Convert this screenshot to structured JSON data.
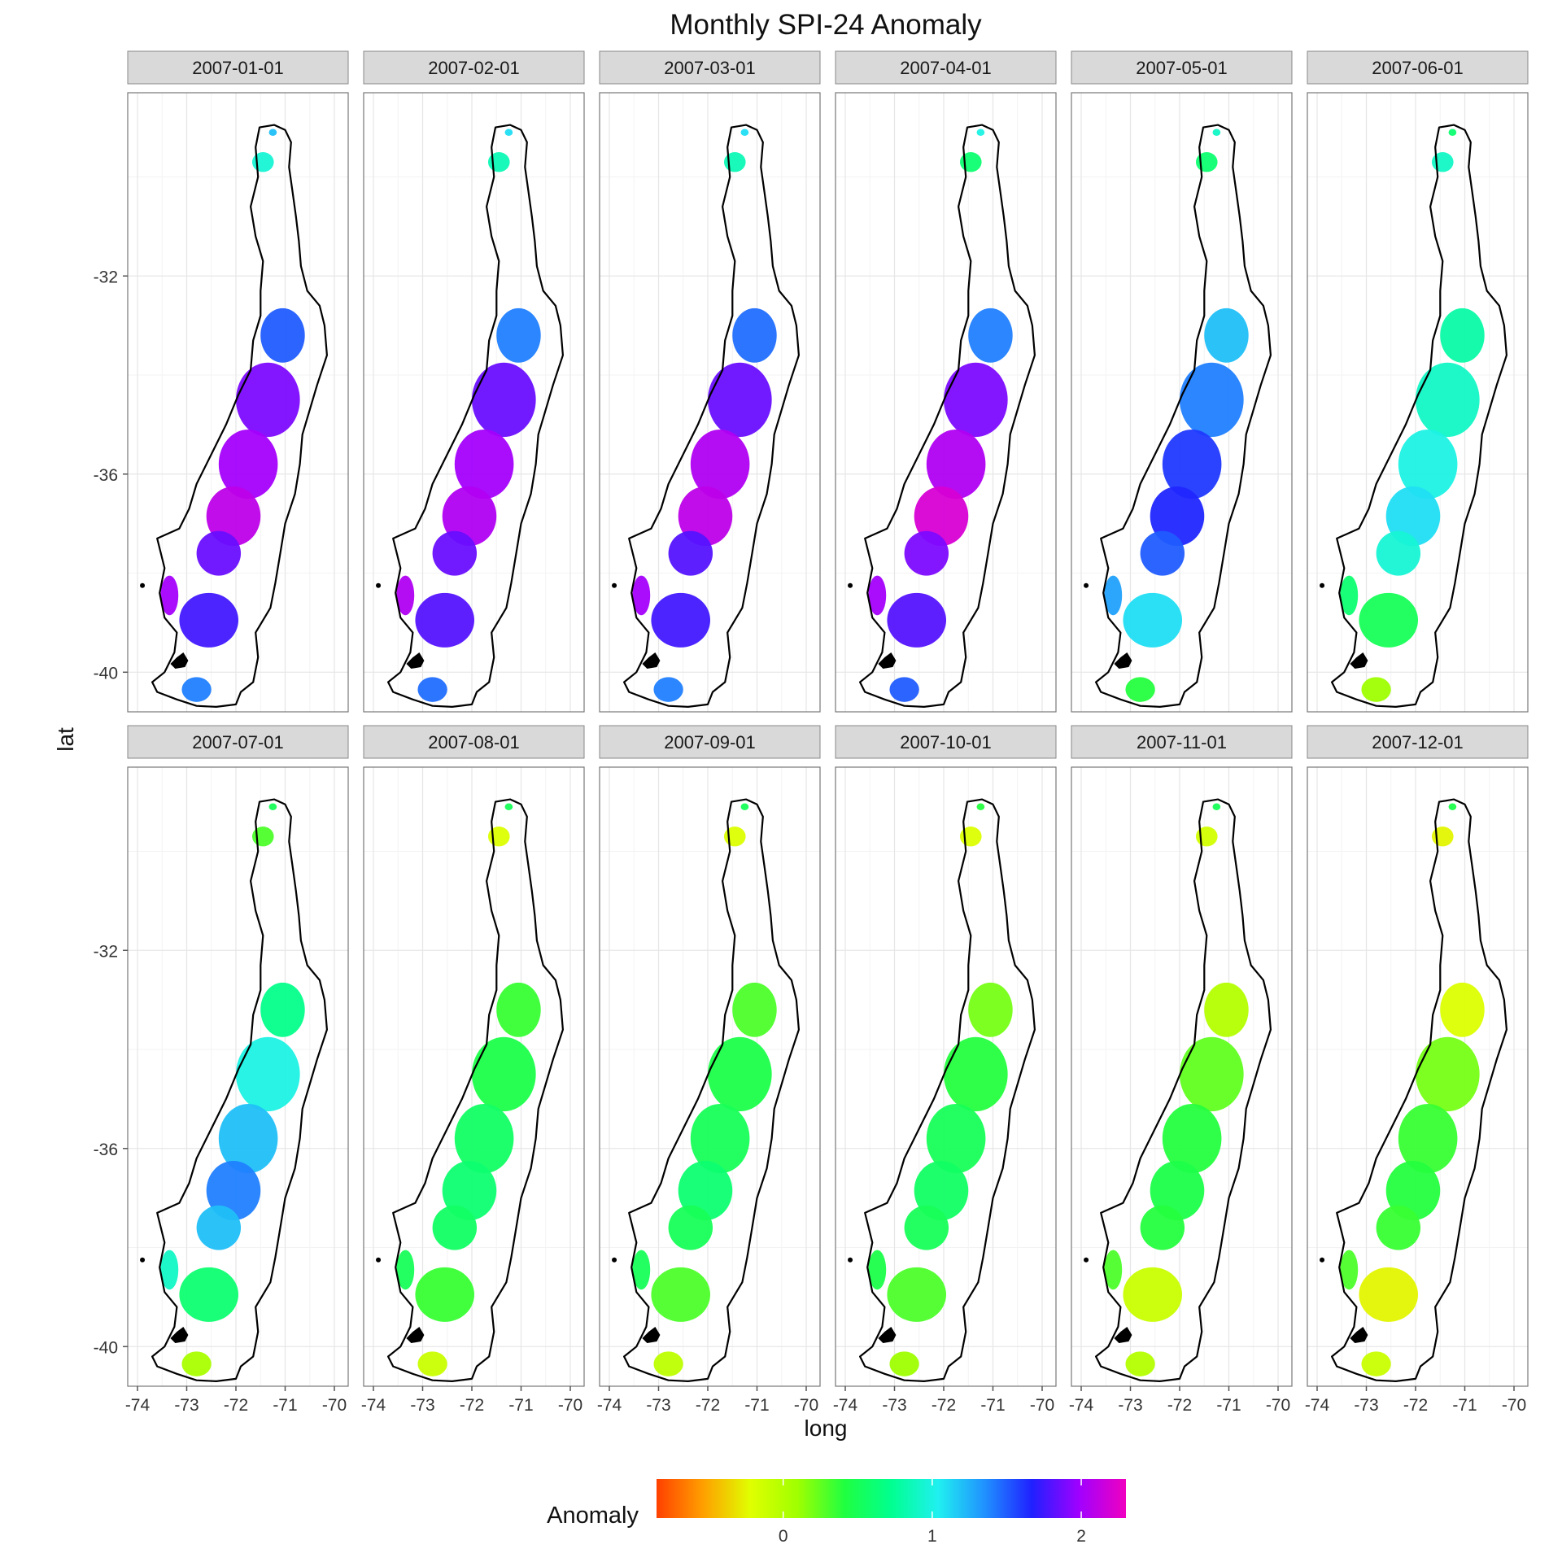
{
  "chart_data": {
    "type": "heatmap",
    "subtype": "faceted choropleth map",
    "title": "Monthly SPI-24 Anomaly",
    "xlabel": "long",
    "ylabel": "lat",
    "xlim": [
      -74.2,
      -69.8
    ],
    "ylim": [
      -40.8,
      -28.3
    ],
    "x_ticks": [
      -74,
      -73,
      -72,
      -71,
      -70
    ],
    "x_tick_labels": [
      "-74",
      "-73",
      "-72",
      "-71",
      "-70"
    ],
    "y_ticks": [
      -32,
      -36,
      -40
    ],
    "y_tick_labels": [
      "-32",
      "-36",
      "-40"
    ],
    "grid": true,
    "facet_grid": {
      "rows": 2,
      "cols": 6
    },
    "legend": {
      "title": "Anomaly",
      "position": "bottom",
      "range": [
        -0.85,
        2.3
      ],
      "ticks": [
        0,
        1,
        2
      ],
      "tick_labels": [
        "0",
        "1",
        "2"
      ],
      "colors": [
        "#ff4000",
        "#ffa000",
        "#e0ff00",
        "#a0ff00",
        "#20ff40",
        "#00ff90",
        "#20f0f0",
        "#2090ff",
        "#2020ff",
        "#a000ff",
        "#f000c0"
      ]
    },
    "region_label_points": [
      {
        "name": "north_cluster",
        "long": -71.5,
        "lat": -29.6
      },
      {
        "name": "north_small",
        "long": -71.2,
        "lat": -30.0
      },
      {
        "name": "valparaiso_santiago",
        "long": -71.0,
        "lat": -33.2
      },
      {
        "name": "central_valley_north",
        "long": -71.5,
        "lat": -34.5
      },
      {
        "name": "maule",
        "long": -71.8,
        "lat": -35.8
      },
      {
        "name": "nuble",
        "long": -72.0,
        "lat": -36.8
      },
      {
        "name": "biobio",
        "long": -72.5,
        "lat": -37.6
      },
      {
        "name": "araucania_coast",
        "long": -73.3,
        "lat": -38.4
      },
      {
        "name": "araucania",
        "long": -72.6,
        "lat": -38.9
      },
      {
        "name": "los_rios",
        "long": -72.9,
        "lat": -40.3
      }
    ],
    "facets": [
      {
        "label": "2007-01-01",
        "values": [
          0.95,
          1.2,
          1.5,
          1.9,
          2.0,
          2.1,
          1.85,
          2.0,
          1.75,
          1.4
        ]
      },
      {
        "label": "2007-02-01",
        "values": [
          0.85,
          1.1,
          1.4,
          1.85,
          2.0,
          2.05,
          1.85,
          2.05,
          1.8,
          1.45
        ]
      },
      {
        "label": "2007-03-01",
        "values": [
          0.85,
          1.1,
          1.45,
          1.85,
          2.05,
          2.1,
          1.8,
          2.0,
          1.75,
          1.4
        ]
      },
      {
        "label": "2007-04-01",
        "values": [
          0.6,
          1.0,
          1.4,
          1.9,
          2.05,
          2.2,
          1.9,
          2.0,
          1.8,
          1.5
        ]
      },
      {
        "label": "2007-05-01",
        "values": [
          0.6,
          0.9,
          1.2,
          1.4,
          1.6,
          1.65,
          1.5,
          1.3,
          1.1,
          0.4
        ]
      },
      {
        "label": "2007-06-01",
        "values": [
          0.9,
          0.6,
          0.8,
          0.9,
          1.0,
          1.1,
          0.95,
          0.6,
          0.5,
          0.1
        ]
      },
      {
        "label": "2007-07-01",
        "values": [
          0.3,
          0.5,
          0.7,
          1.0,
          1.2,
          1.4,
          1.2,
          0.9,
          0.6,
          0.05
        ]
      },
      {
        "label": "2007-08-01",
        "values": [
          -0.2,
          0.5,
          0.35,
          0.45,
          0.55,
          0.6,
          0.55,
          0.5,
          0.35,
          -0.1
        ]
      },
      {
        "label": "2007-09-01",
        "values": [
          -0.2,
          0.5,
          0.3,
          0.45,
          0.5,
          0.6,
          0.5,
          0.5,
          0.3,
          -0.05
        ]
      },
      {
        "label": "2007-10-01",
        "values": [
          -0.2,
          0.4,
          0.2,
          0.4,
          0.5,
          0.55,
          0.5,
          0.45,
          0.3,
          0.1
        ]
      },
      {
        "label": "2007-11-01",
        "values": [
          -0.15,
          0.5,
          0.0,
          0.25,
          0.4,
          0.45,
          0.4,
          0.3,
          -0.1,
          0.0
        ]
      },
      {
        "label": "2007-12-01",
        "values": [
          -0.25,
          0.45,
          -0.2,
          0.2,
          0.35,
          0.4,
          0.35,
          0.3,
          -0.25,
          -0.1
        ]
      }
    ]
  }
}
